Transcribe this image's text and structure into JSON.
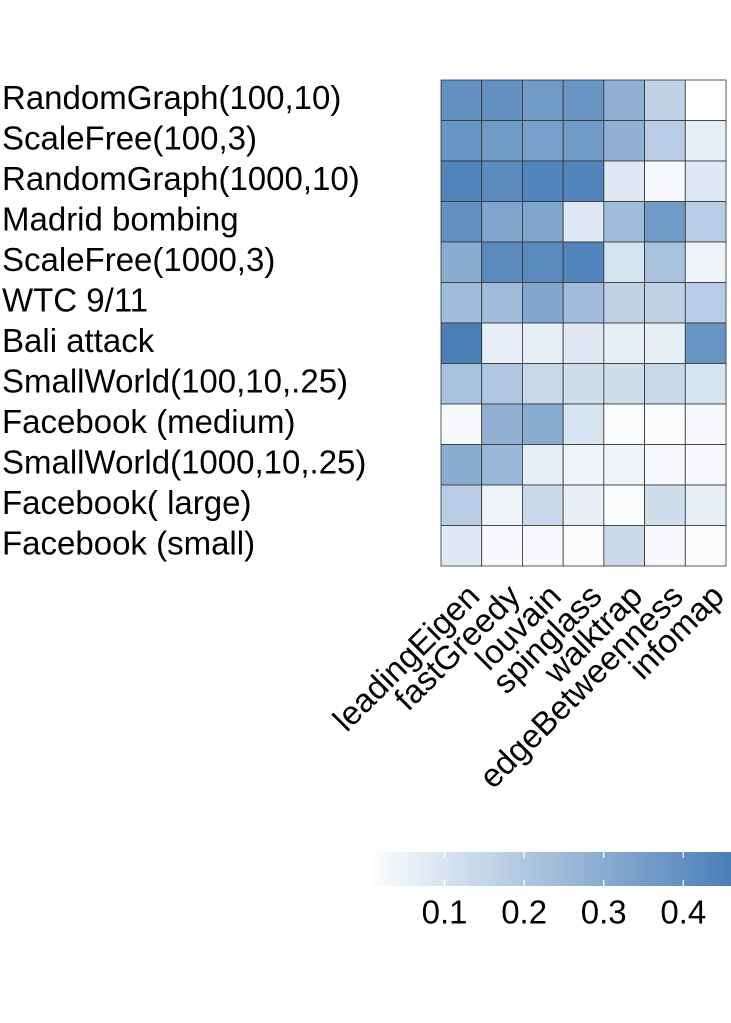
{
  "chart_data": {
    "type": "heatmap",
    "rows": [
      "RandomGraph(100,10)",
      "ScaleFree(100,3)",
      "RandomGraph(1000,10)",
      "Madrid bombing",
      "ScaleFree(1000,3)",
      "WTC 9/11",
      "Bali attack",
      "SmallWorld(100,10,.25)",
      "Facebook (medium)",
      "SmallWorld(1000,10,.25)",
      "Facebook( large)",
      "Facebook (small)"
    ],
    "columns": [
      "leadingEigen",
      "fastGreedy",
      "louvain",
      "spinglass",
      "walktrap",
      "edgeBetweenness",
      "infomap"
    ],
    "values": [
      [
        0.4,
        0.4,
        0.36,
        0.38,
        0.28,
        0.16,
        0.0
      ],
      [
        0.38,
        0.36,
        0.34,
        0.36,
        0.28,
        0.18,
        0.06
      ],
      [
        0.44,
        0.42,
        0.44,
        0.44,
        0.08,
        0.02,
        0.08
      ],
      [
        0.4,
        0.32,
        0.32,
        0.08,
        0.24,
        0.36,
        0.18
      ],
      [
        0.3,
        0.42,
        0.42,
        0.44,
        0.1,
        0.22,
        0.04
      ],
      [
        0.24,
        0.24,
        0.32,
        0.24,
        0.16,
        0.16,
        0.18
      ],
      [
        0.5,
        0.06,
        0.06,
        0.08,
        0.06,
        0.06,
        0.38
      ],
      [
        0.22,
        0.2,
        0.14,
        0.12,
        0.12,
        0.14,
        0.1
      ],
      [
        0.02,
        0.28,
        0.3,
        0.1,
        0.01,
        0.01,
        0.02
      ],
      [
        0.3,
        0.26,
        0.06,
        0.04,
        0.04,
        0.02,
        0.02
      ],
      [
        0.18,
        0.04,
        0.14,
        0.06,
        0.01,
        0.12,
        0.06
      ],
      [
        0.08,
        0.02,
        0.02,
        0.01,
        0.14,
        0.02,
        0.01
      ]
    ],
    "color_low": "#ffffff",
    "color_high": "#4a7fb8",
    "zlim": [
      0.01,
      0.46
    ],
    "zticks": [
      0.1,
      0.2,
      0.3,
      0.4
    ]
  }
}
